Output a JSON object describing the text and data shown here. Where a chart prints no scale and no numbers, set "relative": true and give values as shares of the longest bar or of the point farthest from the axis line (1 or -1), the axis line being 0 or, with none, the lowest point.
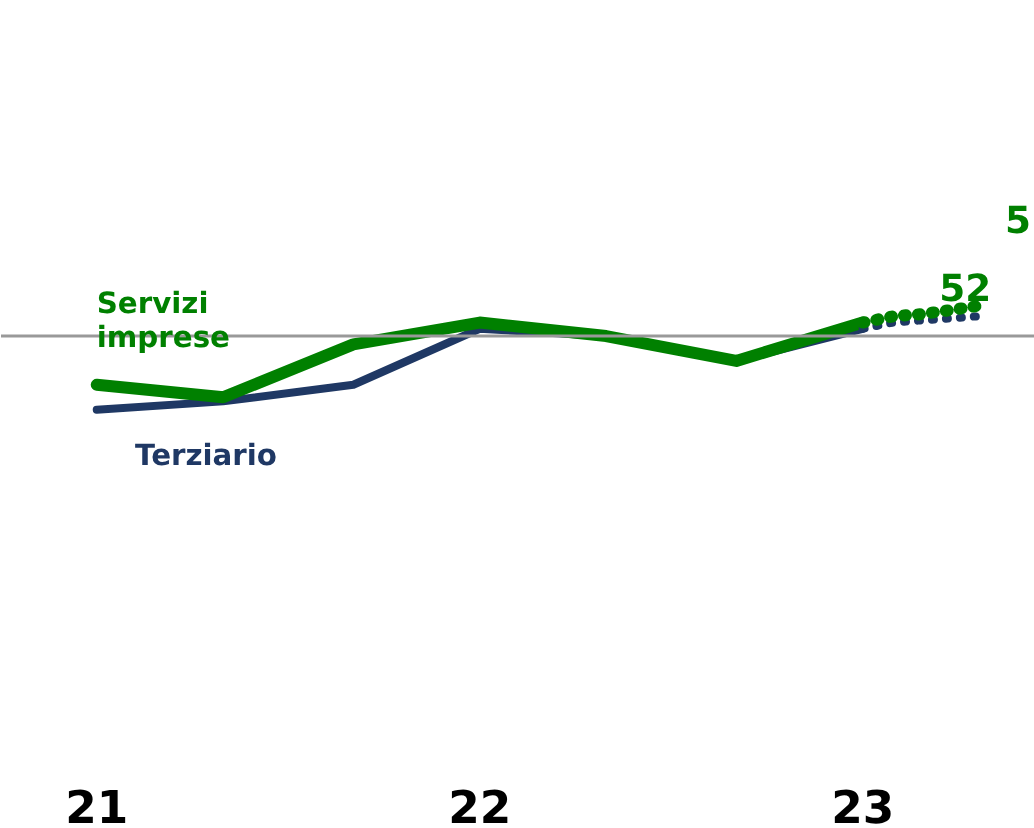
{
  "chart_data": {
    "type": "line",
    "relative": true,
    "x": [
      21,
      21.33,
      21.67,
      22,
      22.33,
      22.67,
      23
    ],
    "xlim": [
      20.75,
      23.45
    ],
    "xticks": [
      21,
      22,
      23
    ],
    "series": [
      {
        "name": "Terziario",
        "color": "#1f3864",
        "values": [
          0,
          0.08,
          0.24,
          0.78,
          0.71,
          0.47,
          0.78
        ]
      },
      {
        "name": "Servizi imprese",
        "color": "#008000",
        "values": [
          0.24,
          0.12,
          0.63,
          0.84,
          0.71,
          0.47,
          0.84
        ]
      },
      {
        "color": "#1f3864",
        "x": [
          23,
          23.08,
          23.15,
          23.23,
          23.3
        ],
        "values": [
          0.78,
          0.84,
          0.86,
          0.88,
          0.9
        ],
        "line_style": "dotted"
      },
      {
        "color": "#008000",
        "x": [
          23,
          23.08,
          23.15,
          23.23,
          23.3
        ],
        "values": [
          0.84,
          0.9,
          0.92,
          0.96,
          1
        ],
        "line_style": "dotted"
      }
    ],
    "ref_lines": [
      {
        "axis": "y",
        "value": 0.71,
        "color": "#999999"
      }
    ],
    "annotations": [
      {
        "text": "52",
        "x": 23.2,
        "y": 1.05
      },
      "5"
    ],
    "grid": false,
    "legend": false,
    "tick_labels": "x"
  }
}
